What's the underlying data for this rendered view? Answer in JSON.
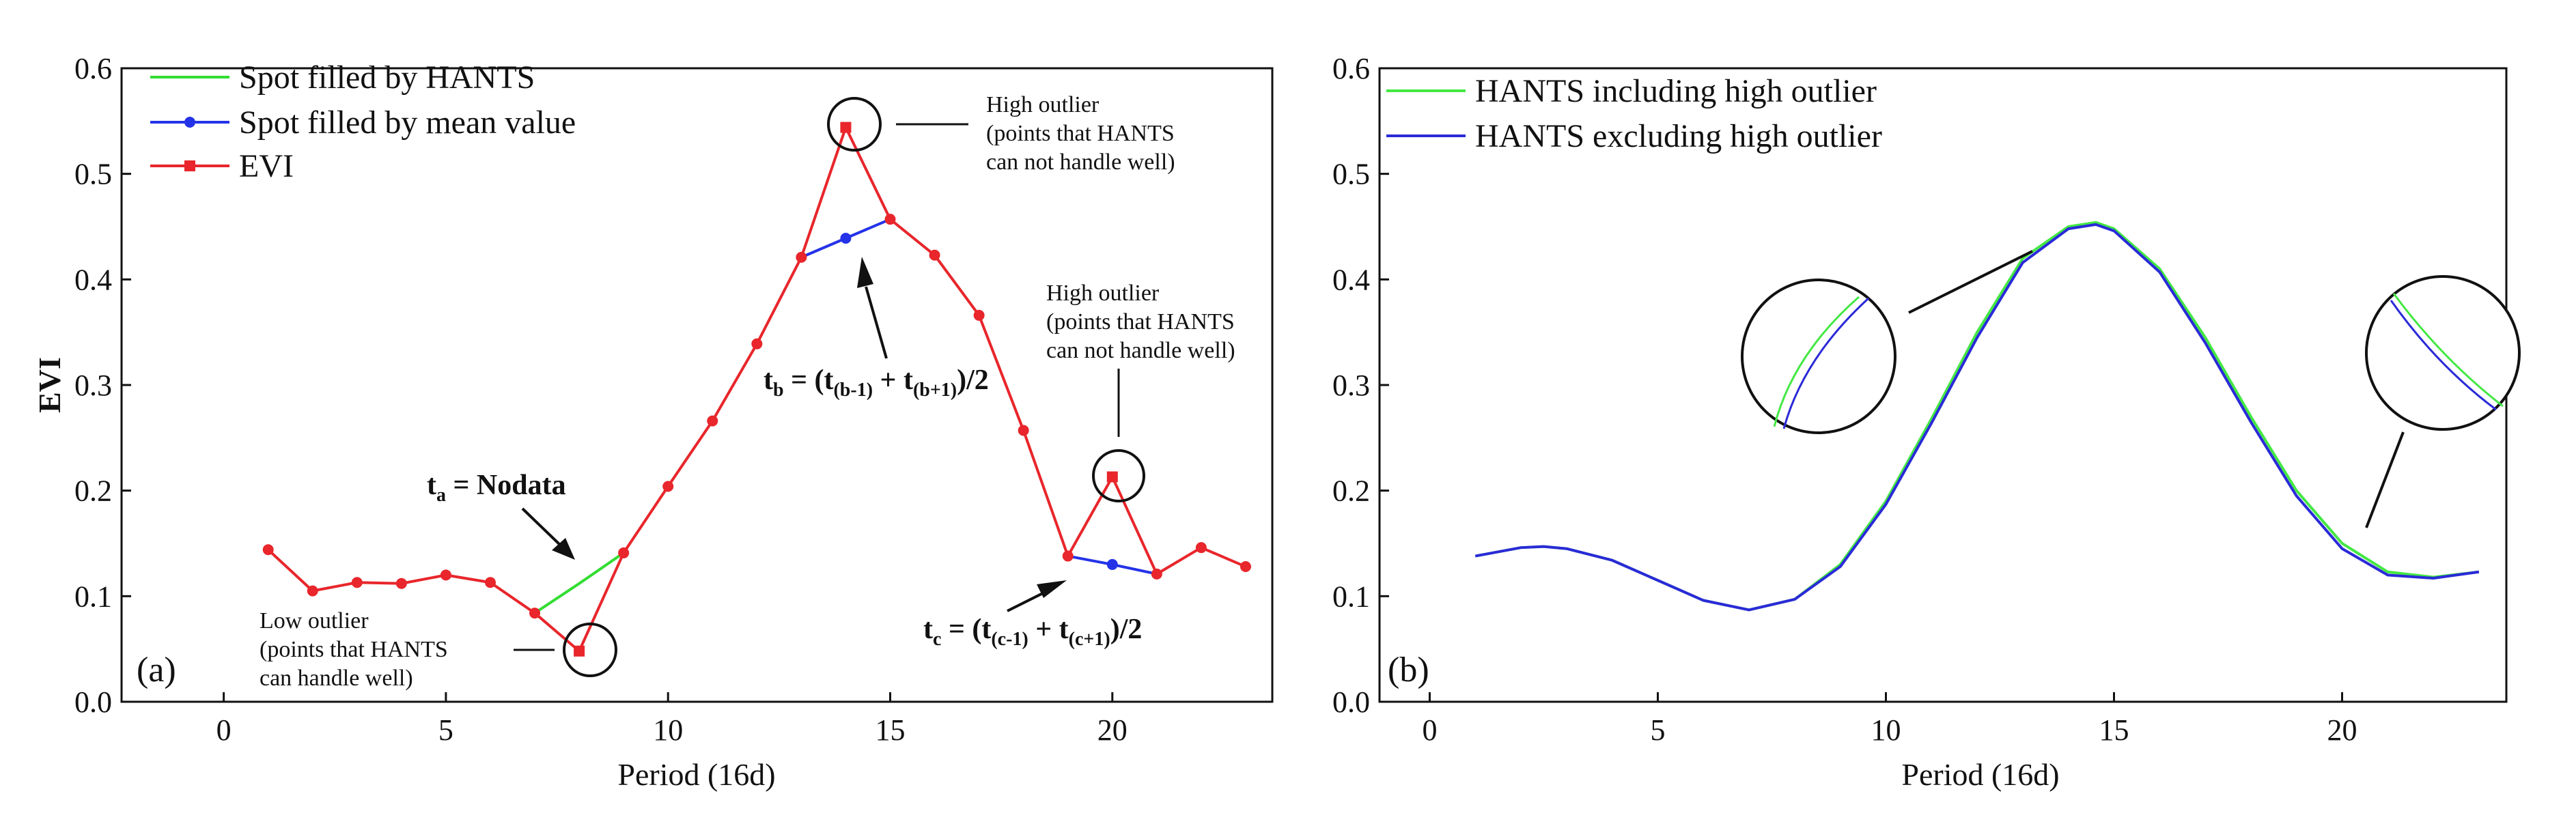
{
  "chart_data": [
    {
      "panel": "(a)",
      "type": "line",
      "xlabel": "Period (16d)",
      "ylabel": "EVI",
      "xlim": [
        -2.3,
        23.6
      ],
      "ylim": [
        0.0,
        0.6
      ],
      "xticks": [
        "0",
        "5",
        "10",
        "15",
        "20"
      ],
      "yticks": [
        "0.0",
        "0.1",
        "0.2",
        "0.3",
        "0.4",
        "0.5",
        "0.6"
      ],
      "legend": [
        "Spot filled by HANTS",
        "Spot filled by mean value",
        "EVI"
      ],
      "series": [
        {
          "name": "EVI",
          "color": "#e8262b",
          "x": [
            1,
            2,
            3,
            4,
            5,
            6,
            7,
            8,
            9,
            10,
            11,
            12,
            13,
            14,
            15,
            16,
            17,
            18,
            19,
            20,
            21,
            22,
            23
          ],
          "y": [
            0.144,
            0.105,
            0.113,
            0.112,
            0.12,
            0.113,
            0.084,
            0.048,
            0.141,
            0.204,
            0.266,
            0.339,
            0.421,
            0.544,
            0.457,
            0.423,
            0.366,
            0.257,
            0.138,
            0.213,
            0.121,
            0.146,
            0.128
          ]
        },
        {
          "name": "Spot filled by HANTS",
          "color": "#33dd33",
          "x": [
            7,
            8,
            9
          ],
          "y": [
            0.084,
            0.112,
            0.141
          ]
        },
        {
          "name": "Spot filled by mean value",
          "color": "#2433e8",
          "x": [
            13,
            14,
            15,
            19,
            20,
            21
          ],
          "y": [
            0.421,
            0.439,
            0.457,
            0.138,
            0.13,
            0.121
          ],
          "markers": [
            {
              "x": 14,
              "y": 0.439
            },
            {
              "x": 20,
              "y": 0.13
            }
          ]
        }
      ],
      "annotations": {
        "ta": {
          "pre": "t",
          "sub": "a",
          "rest": " = Nodata"
        },
        "tb": {
          "pre": "t",
          "sub": "b",
          "mid": " = (t",
          "sub2": "(b-1)",
          "mid2": " + t",
          "sub3": "(b+1)",
          "end": ")/2"
        },
        "tc": {
          "pre": "t",
          "sub": "c",
          "mid": " = (t",
          "sub2": "(c-1)",
          "mid2": " + t",
          "sub3": "(c+1)",
          "end": ")/2"
        },
        "low": [
          "Low outlier",
          "(points that HANTS",
          "can handle well)"
        ],
        "high1": [
          "High outlier",
          "(points that HANTS",
          "can not handle well)"
        ],
        "high2": [
          "High outlier",
          "(points that HANTS",
          "can not handle well)"
        ]
      }
    },
    {
      "panel": "(b)",
      "type": "line",
      "xlabel": "Period (16d)",
      "ylabel": "",
      "xlim": [
        -1.1,
        23.6
      ],
      "ylim": [
        0.0,
        0.6
      ],
      "xticks": [
        "0",
        "5",
        "10",
        "15",
        "20"
      ],
      "yticks": [
        "0.0",
        "0.1",
        "0.2",
        "0.3",
        "0.4",
        "0.5",
        "0.6"
      ],
      "legend": [
        "HANTS including high outlier",
        "HANTS excluding high outlier"
      ],
      "series": [
        {
          "name": "HANTS including high outlier",
          "color": "#44e844",
          "x": [
            1,
            2,
            2.5,
            3,
            4,
            5,
            6,
            7,
            8,
            9,
            10,
            11,
            12,
            13,
            14,
            14.6,
            15,
            16,
            17,
            18,
            19,
            20,
            21,
            22,
            23
          ],
          "y": [
            0.138,
            0.146,
            0.147,
            0.145,
            0.134,
            0.115,
            0.096,
            0.087,
            0.097,
            0.13,
            0.19,
            0.268,
            0.35,
            0.42,
            0.45,
            0.454,
            0.448,
            0.41,
            0.345,
            0.27,
            0.2,
            0.15,
            0.123,
            0.118,
            0.123
          ]
        },
        {
          "name": "HANTS excluding high outlier",
          "color": "#2a2ad8",
          "x": [
            1,
            2,
            2.5,
            3,
            4,
            5,
            6,
            7,
            8,
            9,
            10,
            11,
            12,
            13,
            14,
            14.6,
            15,
            16,
            17,
            18,
            19,
            20,
            21,
            22,
            23
          ],
          "y": [
            0.138,
            0.146,
            0.147,
            0.145,
            0.134,
            0.115,
            0.096,
            0.087,
            0.097,
            0.128,
            0.187,
            0.264,
            0.345,
            0.416,
            0.448,
            0.452,
            0.446,
            0.407,
            0.34,
            0.265,
            0.195,
            0.145,
            0.12,
            0.117,
            0.123
          ]
        }
      ]
    }
  ]
}
